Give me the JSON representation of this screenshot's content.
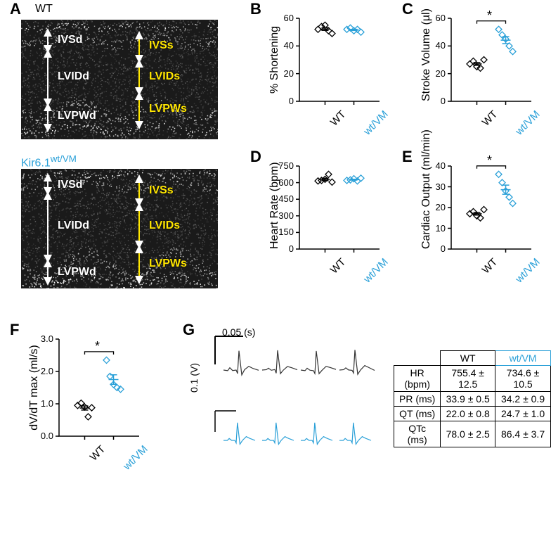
{
  "colors": {
    "wt": "#000000",
    "vm": "#2aa0d8",
    "white": "#ffffff",
    "yellow": "#ffe600",
    "axis": "#000000",
    "bg": "#ffffff"
  },
  "panelLabels": {
    "A": "A",
    "B": "B",
    "C": "C",
    "D": "D",
    "E": "E",
    "F": "F",
    "G": "G"
  },
  "panelA": {
    "wt_title": "WT",
    "vm_title_pre": "Kir6.1",
    "vm_title_sup": "wt/VM",
    "measures_d": [
      "IVSd",
      "LVIDd",
      "LVPWd"
    ],
    "measures_s": [
      "IVSs",
      "LVIDs",
      "LVPWs"
    ]
  },
  "xcats": {
    "wt": "WT",
    "vm": "wt/VM"
  },
  "panelB": {
    "ylabel": "% Shortening",
    "ymin": 0,
    "ymax": 60,
    "ystep": 20,
    "wt": [
      52,
      54,
      55,
      51,
      49
    ],
    "vm": [
      52,
      53,
      51,
      52,
      50
    ]
  },
  "panelC": {
    "ylabel": "Stroke Volume (µl)",
    "ymin": 0,
    "ymax": 60,
    "ystep": 20,
    "sig": "*",
    "wt": [
      27,
      29,
      25,
      24,
      30
    ],
    "vm": [
      52,
      48,
      45,
      40,
      36
    ]
  },
  "panelD": {
    "ylabel": "Heart Rate (bpm)",
    "ymin": 0,
    "ymax": 750,
    "ystep": 150,
    "wt": [
      615,
      620,
      630,
      675,
      605
    ],
    "vm": [
      620,
      625,
      635,
      615,
      640
    ]
  },
  "panelE": {
    "ylabel": "Cardiac Output (ml/min)",
    "ymin": 0,
    "ymax": 40,
    "ystep": 10,
    "sig": "*",
    "wt": [
      17,
      18,
      16,
      15,
      19
    ],
    "vm": [
      36,
      32,
      28,
      25,
      22
    ]
  },
  "panelF": {
    "ylabel": "dV/dT max (ml/s)",
    "ymin": 0,
    "ymax": 3.0,
    "ystep": 1.0,
    "decimals": 1,
    "sig": "*",
    "wt": [
      0.95,
      1.02,
      0.9,
      0.6,
      0.88
    ],
    "vm": [
      2.35,
      1.85,
      1.6,
      1.5,
      1.45
    ]
  },
  "panelG": {
    "x_scale_label": "0.05 (s)",
    "y_scale_label": "0.1 (V)",
    "table": {
      "head_wt": "WT",
      "head_vm": "wt/VM",
      "rows": [
        {
          "k": "HR (bpm)",
          "wt": "755.4 ± 12.5",
          "vm": "734.6 ± 10.5"
        },
        {
          "k": "PR (ms)",
          "wt": "33.9 ± 0.5",
          "vm": "34.2 ± 0.9"
        },
        {
          "k": "QT (ms)",
          "wt": "22.0 ± 0.8",
          "vm": "24.7 ± 1.0"
        },
        {
          "k": "QTc (ms)",
          "wt": "78.0 ± 2.5",
          "vm": "86.4 ± 3.7"
        }
      ]
    }
  }
}
